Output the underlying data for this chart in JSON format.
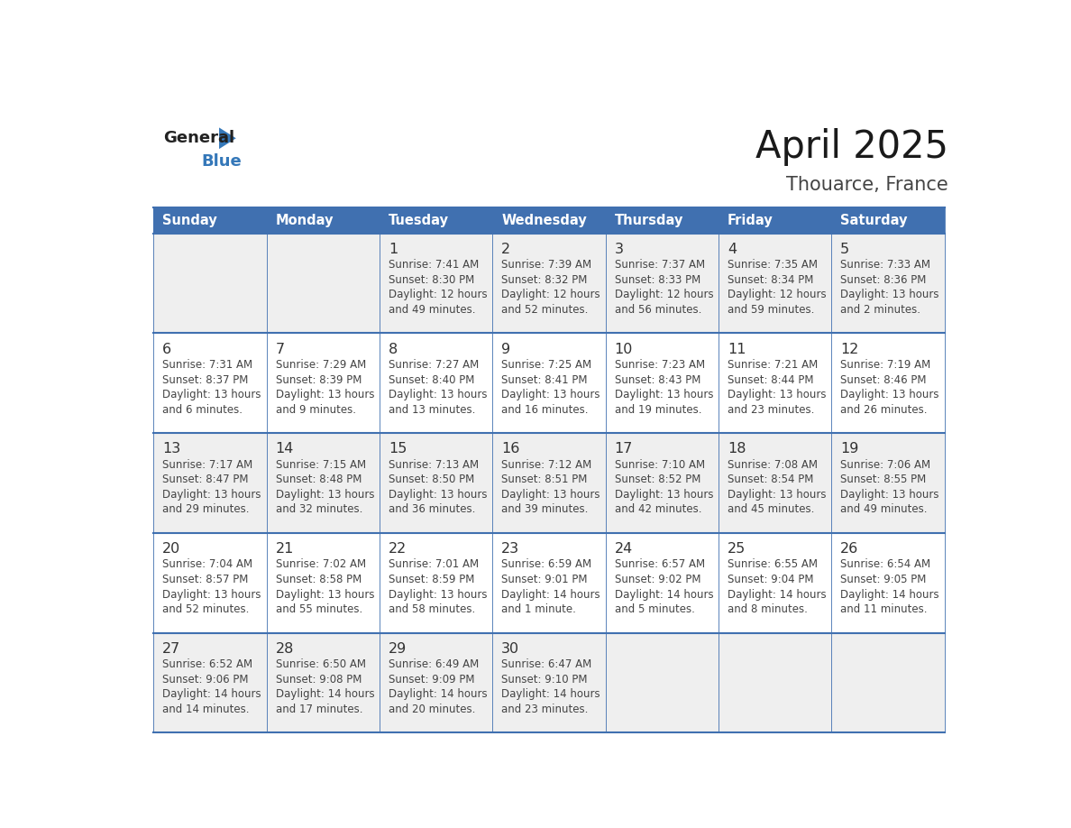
{
  "title": "April 2025",
  "subtitle": "Thouarce, France",
  "header_bg": "#4070B0",
  "header_text_color": "#FFFFFF",
  "day_names": [
    "Sunday",
    "Monday",
    "Tuesday",
    "Wednesday",
    "Thursday",
    "Friday",
    "Saturday"
  ],
  "row_bg_even": "#EFEFEF",
  "row_bg_odd": "#FFFFFF",
  "cell_text_color": "#444444",
  "date_text_color": "#333333",
  "grid_line_color": "#4070B0",
  "logo_general_color": "#222222",
  "logo_blue_color": "#3578B9",
  "calendar": [
    [
      {
        "day": "",
        "sunrise": "",
        "sunset": "",
        "daylight": ""
      },
      {
        "day": "",
        "sunrise": "",
        "sunset": "",
        "daylight": ""
      },
      {
        "day": "1",
        "sunrise": "7:41 AM",
        "sunset": "8:30 PM",
        "daylight_line1": "Daylight: 12 hours",
        "daylight_line2": "and 49 minutes."
      },
      {
        "day": "2",
        "sunrise": "7:39 AM",
        "sunset": "8:32 PM",
        "daylight_line1": "Daylight: 12 hours",
        "daylight_line2": "and 52 minutes."
      },
      {
        "day": "3",
        "sunrise": "7:37 AM",
        "sunset": "8:33 PM",
        "daylight_line1": "Daylight: 12 hours",
        "daylight_line2": "and 56 minutes."
      },
      {
        "day": "4",
        "sunrise": "7:35 AM",
        "sunset": "8:34 PM",
        "daylight_line1": "Daylight: 12 hours",
        "daylight_line2": "and 59 minutes."
      },
      {
        "day": "5",
        "sunrise": "7:33 AM",
        "sunset": "8:36 PM",
        "daylight_line1": "Daylight: 13 hours",
        "daylight_line2": "and 2 minutes."
      }
    ],
    [
      {
        "day": "6",
        "sunrise": "7:31 AM",
        "sunset": "8:37 PM",
        "daylight_line1": "Daylight: 13 hours",
        "daylight_line2": "and 6 minutes."
      },
      {
        "day": "7",
        "sunrise": "7:29 AM",
        "sunset": "8:39 PM",
        "daylight_line1": "Daylight: 13 hours",
        "daylight_line2": "and 9 minutes."
      },
      {
        "day": "8",
        "sunrise": "7:27 AM",
        "sunset": "8:40 PM",
        "daylight_line1": "Daylight: 13 hours",
        "daylight_line2": "and 13 minutes."
      },
      {
        "day": "9",
        "sunrise": "7:25 AM",
        "sunset": "8:41 PM",
        "daylight_line1": "Daylight: 13 hours",
        "daylight_line2": "and 16 minutes."
      },
      {
        "day": "10",
        "sunrise": "7:23 AM",
        "sunset": "8:43 PM",
        "daylight_line1": "Daylight: 13 hours",
        "daylight_line2": "and 19 minutes."
      },
      {
        "day": "11",
        "sunrise": "7:21 AM",
        "sunset": "8:44 PM",
        "daylight_line1": "Daylight: 13 hours",
        "daylight_line2": "and 23 minutes."
      },
      {
        "day": "12",
        "sunrise": "7:19 AM",
        "sunset": "8:46 PM",
        "daylight_line1": "Daylight: 13 hours",
        "daylight_line2": "and 26 minutes."
      }
    ],
    [
      {
        "day": "13",
        "sunrise": "7:17 AM",
        "sunset": "8:47 PM",
        "daylight_line1": "Daylight: 13 hours",
        "daylight_line2": "and 29 minutes."
      },
      {
        "day": "14",
        "sunrise": "7:15 AM",
        "sunset": "8:48 PM",
        "daylight_line1": "Daylight: 13 hours",
        "daylight_line2": "and 32 minutes."
      },
      {
        "day": "15",
        "sunrise": "7:13 AM",
        "sunset": "8:50 PM",
        "daylight_line1": "Daylight: 13 hours",
        "daylight_line2": "and 36 minutes."
      },
      {
        "day": "16",
        "sunrise": "7:12 AM",
        "sunset": "8:51 PM",
        "daylight_line1": "Daylight: 13 hours",
        "daylight_line2": "and 39 minutes."
      },
      {
        "day": "17",
        "sunrise": "7:10 AM",
        "sunset": "8:52 PM",
        "daylight_line1": "Daylight: 13 hours",
        "daylight_line2": "and 42 minutes."
      },
      {
        "day": "18",
        "sunrise": "7:08 AM",
        "sunset": "8:54 PM",
        "daylight_line1": "Daylight: 13 hours",
        "daylight_line2": "and 45 minutes."
      },
      {
        "day": "19",
        "sunrise": "7:06 AM",
        "sunset": "8:55 PM",
        "daylight_line1": "Daylight: 13 hours",
        "daylight_line2": "and 49 minutes."
      }
    ],
    [
      {
        "day": "20",
        "sunrise": "7:04 AM",
        "sunset": "8:57 PM",
        "daylight_line1": "Daylight: 13 hours",
        "daylight_line2": "and 52 minutes."
      },
      {
        "day": "21",
        "sunrise": "7:02 AM",
        "sunset": "8:58 PM",
        "daylight_line1": "Daylight: 13 hours",
        "daylight_line2": "and 55 minutes."
      },
      {
        "day": "22",
        "sunrise": "7:01 AM",
        "sunset": "8:59 PM",
        "daylight_line1": "Daylight: 13 hours",
        "daylight_line2": "and 58 minutes."
      },
      {
        "day": "23",
        "sunrise": "6:59 AM",
        "sunset": "9:01 PM",
        "daylight_line1": "Daylight: 14 hours",
        "daylight_line2": "and 1 minute."
      },
      {
        "day": "24",
        "sunrise": "6:57 AM",
        "sunset": "9:02 PM",
        "daylight_line1": "Daylight: 14 hours",
        "daylight_line2": "and 5 minutes."
      },
      {
        "day": "25",
        "sunrise": "6:55 AM",
        "sunset": "9:04 PM",
        "daylight_line1": "Daylight: 14 hours",
        "daylight_line2": "and 8 minutes."
      },
      {
        "day": "26",
        "sunrise": "6:54 AM",
        "sunset": "9:05 PM",
        "daylight_line1": "Daylight: 14 hours",
        "daylight_line2": "and 11 minutes."
      }
    ],
    [
      {
        "day": "27",
        "sunrise": "6:52 AM",
        "sunset": "9:06 PM",
        "daylight_line1": "Daylight: 14 hours",
        "daylight_line2": "and 14 minutes."
      },
      {
        "day": "28",
        "sunrise": "6:50 AM",
        "sunset": "9:08 PM",
        "daylight_line1": "Daylight: 14 hours",
        "daylight_line2": "and 17 minutes."
      },
      {
        "day": "29",
        "sunrise": "6:49 AM",
        "sunset": "9:09 PM",
        "daylight_line1": "Daylight: 14 hours",
        "daylight_line2": "and 20 minutes."
      },
      {
        "day": "30",
        "sunrise": "6:47 AM",
        "sunset": "9:10 PM",
        "daylight_line1": "Daylight: 14 hours",
        "daylight_line2": "and 23 minutes."
      },
      {
        "day": "",
        "sunrise": "",
        "sunset": "",
        "daylight_line1": "",
        "daylight_line2": ""
      },
      {
        "day": "",
        "sunrise": "",
        "sunset": "",
        "daylight_line1": "",
        "daylight_line2": ""
      },
      {
        "day": "",
        "sunrise": "",
        "sunset": "",
        "daylight_line1": "",
        "daylight_line2": ""
      }
    ]
  ]
}
